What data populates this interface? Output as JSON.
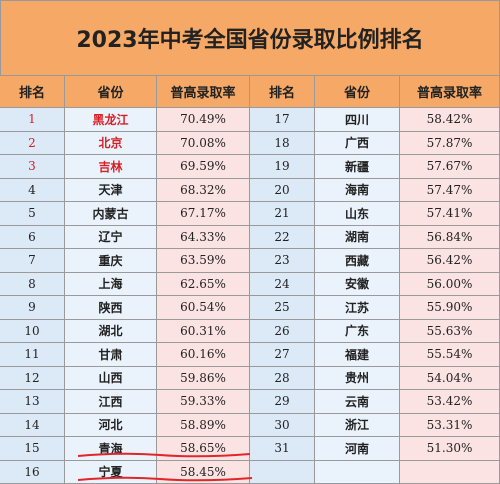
{
  "header": {
    "title": "2023年中考全国省份录取比例排名"
  },
  "table": {
    "headers": [
      "排名",
      "省份",
      "普高录取率",
      "排名",
      "省份",
      "普高录取率"
    ],
    "left": [
      [
        "1",
        "黑龙江",
        "70.49%"
      ],
      [
        "2",
        "北京",
        "70.08%"
      ],
      [
        "3",
        "吉林",
        "69.59%"
      ],
      [
        "4",
        "天津",
        "68.32%"
      ],
      [
        "5",
        "内蒙古",
        "67.17%"
      ],
      [
        "6",
        "辽宁",
        "64.33%"
      ],
      [
        "7",
        "重庆",
        "63.59%"
      ],
      [
        "8",
        "上海",
        "62.65%"
      ],
      [
        "9",
        "陕西",
        "60.54%"
      ],
      [
        "10",
        "湖北",
        "60.31%"
      ],
      [
        "11",
        "甘肃",
        "60.16%"
      ],
      [
        "12",
        "山西",
        "59.86%"
      ],
      [
        "13",
        "江西",
        "59.33%"
      ],
      [
        "14",
        "河北",
        "58.89%"
      ],
      [
        "15",
        "青海",
        "58.65%"
      ],
      [
        "16",
        "宁夏",
        "58.45%"
      ]
    ],
    "right": [
      [
        "17",
        "四川",
        "58.42%"
      ],
      [
        "18",
        "广西",
        "57.87%"
      ],
      [
        "19",
        "新疆",
        "57.67%"
      ],
      [
        "20",
        "海南",
        "57.47%"
      ],
      [
        "21",
        "山东",
        "57.41%"
      ],
      [
        "22",
        "湖南",
        "56.84%"
      ],
      [
        "23",
        "西藏",
        "56.42%"
      ],
      [
        "24",
        "安徽",
        "56.00%"
      ],
      [
        "25",
        "江苏",
        "55.90%"
      ],
      [
        "26",
        "广东",
        "55.63%"
      ],
      [
        "27",
        "福建",
        "55.54%"
      ],
      [
        "28",
        "贵州",
        "54.04%"
      ],
      [
        "29",
        "云南",
        "53.42%"
      ],
      [
        "30",
        "浙江",
        "53.31%"
      ],
      [
        "31",
        "河南",
        "51.30%"
      ]
    ]
  }
}
